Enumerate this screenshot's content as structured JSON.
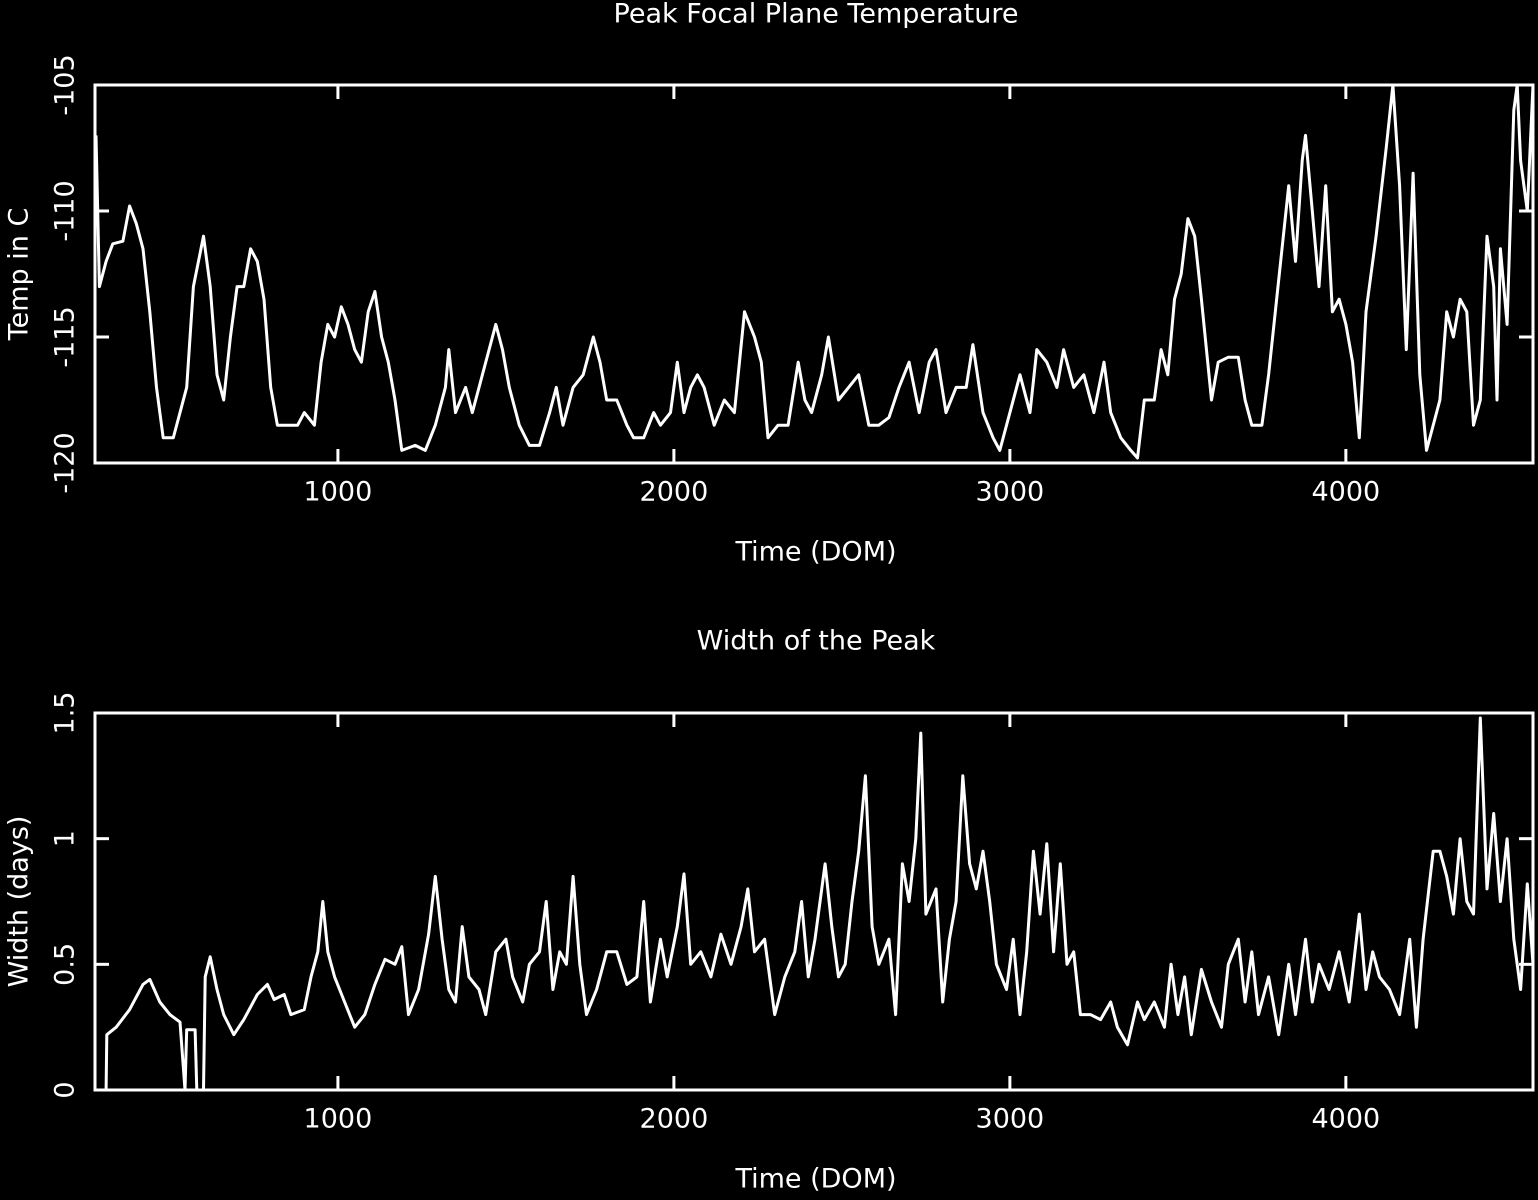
{
  "chart_data": [
    {
      "type": "line",
      "title": "Peak Focal Plane Temperature",
      "x_label": "Time (DOM)",
      "y_label": "Temp in C",
      "xlim": [
        277,
        4557
      ],
      "xticks": [
        1000,
        2000,
        3000,
        4000
      ],
      "ylim": [
        -120,
        -105
      ],
      "yticks": [
        -120,
        -115,
        -110,
        -105
      ],
      "series": [
        {
          "color": "#ffffff",
          "x": [
            280,
            290,
            310,
            330,
            360,
            380,
            400,
            420,
            440,
            460,
            480,
            510,
            530,
            550,
            570,
            600,
            620,
            640,
            660,
            680,
            700,
            720,
            740,
            760,
            780,
            800,
            820,
            850,
            880,
            900,
            930,
            950,
            970,
            990,
            1010,
            1030,
            1050,
            1070,
            1090,
            1110,
            1130,
            1150,
            1170,
            1190,
            1230,
            1260,
            1290,
            1320,
            1330,
            1350,
            1380,
            1400,
            1430,
            1450,
            1470,
            1490,
            1510,
            1540,
            1570,
            1600,
            1630,
            1650,
            1670,
            1700,
            1730,
            1760,
            1780,
            1800,
            1830,
            1860,
            1880,
            1910,
            1940,
            1960,
            1990,
            2010,
            2030,
            2050,
            2070,
            2090,
            2120,
            2150,
            2180,
            2210,
            2240,
            2260,
            2280,
            2310,
            2340,
            2370,
            2390,
            2410,
            2440,
            2460,
            2490,
            2520,
            2550,
            2580,
            2610,
            2640,
            2670,
            2700,
            2730,
            2760,
            2780,
            2810,
            2840,
            2870,
            2890,
            2920,
            2950,
            2970,
            3000,
            3030,
            3060,
            3080,
            3110,
            3140,
            3160,
            3190,
            3220,
            3250,
            3280,
            3300,
            3330,
            3360,
            3380,
            3400,
            3430,
            3450,
            3470,
            3490,
            3510,
            3530,
            3550,
            3570,
            3600,
            3620,
            3650,
            3680,
            3700,
            3720,
            3750,
            3770,
            3790,
            3810,
            3830,
            3850,
            3870,
            3880,
            3900,
            3920,
            3940,
            3960,
            3980,
            4000,
            4020,
            4040,
            4060,
            4090,
            4120,
            4140,
            4160,
            4180,
            4200,
            4220,
            4240,
            4260,
            4280,
            4300,
            4320,
            4340,
            4360,
            4380,
            4400,
            4420,
            4440,
            4450,
            4460,
            4480,
            4500,
            4510,
            4520,
            4540,
            4557
          ],
          "values": [
            -107,
            -113,
            -112,
            -111.3,
            -111.2,
            -109.8,
            -110.5,
            -111.5,
            -114,
            -117,
            -119,
            -119,
            -118,
            -117,
            -113,
            -111,
            -113,
            -116.5,
            -117.5,
            -115,
            -113,
            -113,
            -111.5,
            -112,
            -113.5,
            -117,
            -118.5,
            -118.5,
            -118.5,
            -118,
            -118.5,
            -116,
            -114.5,
            -115,
            -113.8,
            -114.5,
            -115.5,
            -116,
            -114,
            -113.2,
            -115,
            -116,
            -117.5,
            -119.5,
            -119.3,
            -119.5,
            -118.5,
            -117,
            -115.5,
            -118,
            -117,
            -118,
            -116.5,
            -115.5,
            -114.5,
            -115.5,
            -117,
            -118.5,
            -119.3,
            -119.3,
            -118,
            -117,
            -118.5,
            -117,
            -116.5,
            -115,
            -116,
            -117.5,
            -117.5,
            -118.5,
            -119,
            -119,
            -118,
            -118.5,
            -118,
            -116,
            -118,
            -117,
            -116.5,
            -117,
            -118.5,
            -117.5,
            -118,
            -114,
            -115,
            -116,
            -119,
            -118.5,
            -118.5,
            -116,
            -117.5,
            -118,
            -116.5,
            -115,
            -117.5,
            -117,
            -116.5,
            -118.5,
            -118.5,
            -118.2,
            -117,
            -116,
            -118,
            -116,
            -115.5,
            -118,
            -117,
            -117,
            -115.3,
            -118,
            -119,
            -119.5,
            -118,
            -116.5,
            -118,
            -115.5,
            -116,
            -117,
            -115.5,
            -117,
            -116.5,
            -118,
            -116,
            -118,
            -119,
            -119.5,
            -119.8,
            -117.5,
            -117.5,
            -115.5,
            -116.5,
            -113.5,
            -112.5,
            -110.3,
            -111,
            -113.5,
            -117.5,
            -116,
            -115.8,
            -115.8,
            -117.5,
            -118.5,
            -118.5,
            -116.5,
            -114,
            -111.5,
            -109,
            -112,
            -108,
            -107,
            -110,
            -113,
            -109,
            -114,
            -113.5,
            -114.5,
            -116,
            -119,
            -114,
            -111,
            -107.5,
            -105,
            -109,
            -115.5,
            -108.5,
            -116.5,
            -119.5,
            -118.5,
            -117.5,
            -114,
            -115,
            -113.5,
            -114,
            -118.5,
            -117.5,
            -111,
            -113,
            -117.5,
            -111.5,
            -114.5,
            -106,
            -105,
            -108,
            -110,
            -105
          ]
        }
      ]
    },
    {
      "type": "line",
      "title": "Width of the Peak",
      "x_label": "Time (DOM)",
      "y_label": "Width (days)",
      "xlim": [
        277,
        4557
      ],
      "xticks": [
        1000,
        2000,
        3000,
        4000
      ],
      "ylim": [
        0,
        1.5
      ],
      "yticks": [
        0,
        0.5,
        1,
        1.5
      ],
      "series": [
        {
          "color": "#ffffff",
          "x": [
            310,
            312,
            340,
            380,
            420,
            440,
            470,
            500,
            530,
            545,
            550,
            575,
            580,
            590,
            600,
            605,
            620,
            640,
            660,
            690,
            720,
            760,
            790,
            810,
            840,
            860,
            900,
            920,
            940,
            955,
            970,
            990,
            1020,
            1050,
            1080,
            1110,
            1140,
            1170,
            1190,
            1210,
            1240,
            1270,
            1290,
            1310,
            1330,
            1350,
            1370,
            1390,
            1420,
            1440,
            1470,
            1500,
            1520,
            1550,
            1570,
            1600,
            1620,
            1640,
            1660,
            1680,
            1700,
            1720,
            1740,
            1770,
            1800,
            1830,
            1860,
            1890,
            1910,
            1930,
            1960,
            1980,
            2010,
            2030,
            2050,
            2080,
            2110,
            2140,
            2170,
            2200,
            2220,
            2240,
            2270,
            2300,
            2330,
            2360,
            2380,
            2400,
            2420,
            2450,
            2470,
            2490,
            2510,
            2530,
            2550,
            2570,
            2590,
            2610,
            2640,
            2660,
            2680,
            2700,
            2720,
            2735,
            2750,
            2780,
            2800,
            2820,
            2840,
            2860,
            2880,
            2900,
            2920,
            2940,
            2960,
            2990,
            3010,
            3030,
            3050,
            3070,
            3090,
            3110,
            3130,
            3150,
            3170,
            3190,
            3210,
            3240,
            3270,
            3300,
            3320,
            3350,
            3380,
            3400,
            3430,
            3460,
            3480,
            3500,
            3520,
            3540,
            3570,
            3600,
            3630,
            3650,
            3680,
            3700,
            3720,
            3740,
            3770,
            3800,
            3830,
            3850,
            3880,
            3900,
            3920,
            3950,
            3980,
            4010,
            4040,
            4060,
            4080,
            4100,
            4130,
            4160,
            4190,
            4210,
            4230,
            4260,
            4280,
            4300,
            4320,
            4340,
            4360,
            4380,
            4400,
            4420,
            4440,
            4460,
            4480,
            4500,
            4520,
            4540,
            4557
          ],
          "values": [
            0,
            0.22,
            0.25,
            0.32,
            0.42,
            0.44,
            0.35,
            0.3,
            0.27,
            0,
            0.24,
            0.24,
            0,
            null,
            0,
            0.45,
            0.53,
            0.4,
            0.3,
            0.22,
            0.28,
            0.38,
            0.42,
            0.36,
            0.38,
            0.3,
            0.32,
            0.45,
            0.55,
            0.75,
            0.55,
            0.45,
            0.35,
            0.25,
            0.3,
            0.42,
            0.52,
            0.5,
            0.57,
            0.3,
            0.4,
            0.62,
            0.85,
            0.6,
            0.4,
            0.35,
            0.65,
            0.45,
            0.4,
            0.3,
            0.55,
            0.6,
            0.45,
            0.35,
            0.5,
            0.55,
            0.75,
            0.4,
            0.55,
            0.5,
            0.85,
            0.5,
            0.3,
            0.4,
            0.55,
            0.55,
            0.42,
            0.45,
            0.75,
            0.35,
            0.6,
            0.45,
            0.65,
            0.86,
            0.5,
            0.55,
            0.45,
            0.62,
            0.5,
            0.65,
            0.8,
            0.55,
            0.6,
            0.3,
            0.45,
            0.55,
            0.75,
            0.45,
            0.6,
            0.9,
            0.65,
            0.45,
            0.5,
            0.75,
            0.95,
            1.25,
            0.65,
            0.5,
            0.6,
            0.3,
            0.9,
            0.75,
            1.0,
            1.42,
            0.7,
            0.8,
            0.35,
            0.6,
            0.75,
            1.25,
            0.9,
            0.8,
            0.95,
            0.75,
            0.5,
            0.4,
            0.6,
            0.3,
            0.55,
            0.95,
            0.7,
            0.98,
            0.55,
            0.9,
            0.5,
            0.55,
            0.3,
            0.3,
            0.28,
            0.35,
            0.25,
            0.18,
            0.35,
            0.28,
            0.35,
            0.25,
            0.5,
            0.3,
            0.45,
            0.22,
            0.48,
            0.35,
            0.25,
            0.5,
            0.6,
            0.35,
            0.55,
            0.3,
            0.45,
            0.22,
            0.5,
            0.3,
            0.6,
            0.35,
            0.5,
            0.4,
            0.55,
            0.35,
            0.7,
            0.4,
            0.55,
            0.45,
            0.4,
            0.3,
            0.6,
            0.25,
            0.6,
            0.95,
            0.95,
            0.85,
            0.7,
            1.0,
            0.75,
            0.7,
            1.48,
            0.8,
            1.1,
            0.75,
            1.0,
            0.6,
            0.4,
            0.82,
            0.5
          ]
        }
      ]
    }
  ]
}
